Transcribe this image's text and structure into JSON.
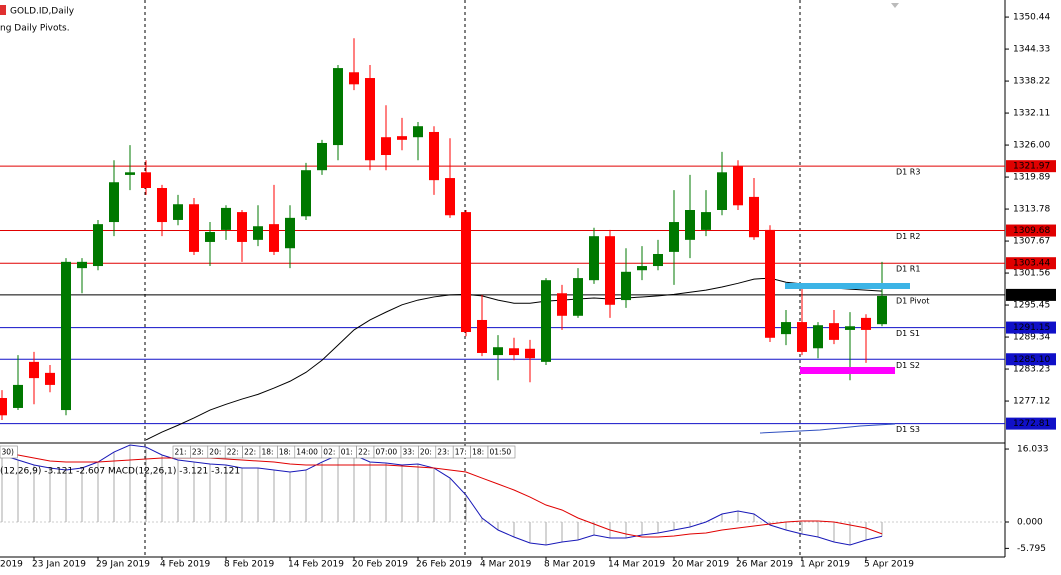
{
  "chart_data": {
    "type": "candlestick",
    "title": "GOLD.ID,Daily",
    "subtitle": "ng Daily Pivots.",
    "categories": [
      null,
      null,
      "23 Jan 2019",
      null,
      null,
      null,
      "29 Jan 2019",
      null,
      null,
      null,
      "4 Feb 2019",
      null,
      null,
      null,
      "8 Feb 2019",
      null,
      null,
      null,
      "14 Feb 2019",
      null,
      null,
      null,
      "20 Feb 2019",
      null,
      null,
      null,
      "26 Feb 2019",
      null,
      null,
      null,
      "4 Mar 2019",
      null,
      null,
      null,
      "8 Mar 2019",
      null,
      null,
      null,
      "14 Mar 2019",
      null,
      null,
      null,
      "20 Mar 2019",
      null,
      null,
      null,
      "26 Mar 2019",
      null,
      null,
      null,
      "1 Apr 2019",
      null,
      null,
      null,
      "5 Apr 2019",
      null
    ],
    "up_color": "#007800",
    "down_color": "#ff0000",
    "open": [
      1277.7,
      1275.8,
      1284.6,
      1282.5,
      1275.4,
      1302.5,
      1302.9,
      1311.3,
      1320.3,
      1320.8,
      1317.8,
      1311.7,
      1314.7,
      1307.5,
      1309.8,
      1313.2,
      1307.9,
      1310.9,
      1306.3,
      1312.4,
      1321.2,
      1326.0,
      1339.9,
      1338.8,
      1327.5,
      1327.7,
      1327.5,
      1328.5,
      1319.7,
      1313.2,
      1292.6,
      1285.9,
      1287.2,
      1287.1,
      1284.6,
      1297.7,
      1293.4,
      1300.2,
      1308.6,
      1296.4,
      1302.1,
      1302.9,
      1305.6,
      1307.9,
      1309.8,
      1313.6,
      1322.0,
      1316.1,
      1309.8,
      1289.9,
      1292.2,
      1287.2,
      1292.0,
      1290.7,
      1293.0,
      1291.8
    ],
    "high": [
      1279.2,
      1285.9,
      1286.5,
      1284.0,
      1304.4,
      1304.4,
      1311.7,
      1323.1,
      1326.0,
      1323.1,
      1318.4,
      1316.5,
      1315.9,
      1311.3,
      1314.5,
      1313.6,
      1314.5,
      1318.4,
      1314.5,
      1322.6,
      1327.0,
      1341.3,
      1346.4,
      1341.3,
      1333.6,
      1331.2,
      1330.4,
      1329.6,
      1327.3,
      1313.6,
      1297.4,
      1289.7,
      1289.2,
      1288.8,
      1300.6,
      1299.3,
      1302.5,
      1310.2,
      1309.8,
      1306.3,
      1306.7,
      1307.9,
      1317.4,
      1320.3,
      1317.4,
      1324.7,
      1323.1,
      1319.7,
      1310.7,
      1294.5,
      1299.3,
      1292.2,
      1294.5,
      1294.1,
      1293.7,
      1303.7
    ],
    "low": [
      1273.5,
      1275.4,
      1276.5,
      1278.8,
      1274.4,
      1297.7,
      1302.1,
      1308.6,
      1317.4,
      1316.5,
      1308.6,
      1310.7,
      1305.0,
      1302.9,
      1307.9,
      1303.7,
      1306.7,
      1305.0,
      1302.5,
      1311.7,
      1320.3,
      1323.1,
      1336.5,
      1321.2,
      1321.2,
      1325.0,
      1323.1,
      1316.5,
      1312.1,
      1289.5,
      1285.7,
      1281.1,
      1284.9,
      1280.7,
      1284.0,
      1290.7,
      1293.0,
      1299.5,
      1293.0,
      1294.9,
      1300.2,
      1302.1,
      1299.3,
      1304.4,
      1308.6,
      1312.6,
      1313.6,
      1307.9,
      1288.4,
      1287.8,
      1285.9,
      1285.3,
      1288.0,
      1281.1,
      1284.4,
      1291.4
    ],
    "close": [
      1274.4,
      1280.2,
      1281.5,
      1280.2,
      1303.7,
      1303.7,
      1310.9,
      1318.9,
      1320.8,
      1317.8,
      1311.3,
      1314.7,
      1305.6,
      1309.4,
      1314.0,
      1307.5,
      1310.5,
      1305.6,
      1312.1,
      1321.2,
      1326.4,
      1340.7,
      1337.6,
      1323.1,
      1324.1,
      1327.0,
      1329.6,
      1319.3,
      1312.6,
      1290.3,
      1286.3,
      1287.4,
      1285.9,
      1285.3,
      1300.2,
      1293.4,
      1300.6,
      1308.6,
      1295.5,
      1301.8,
      1302.9,
      1305.2,
      1311.3,
      1313.6,
      1313.2,
      1320.8,
      1314.5,
      1308.4,
      1289.2,
      1292.2,
      1286.5,
      1291.6,
      1288.8,
      1291.4,
      1290.7,
      1297.2
    ],
    "ma": {
      "color": "#000000",
      "values": [
        null,
        null,
        null,
        null,
        null,
        null,
        null,
        null,
        null,
        1269.7,
        1271.2,
        1272.5,
        1273.9,
        1275.4,
        1276.5,
        1277.5,
        1278.4,
        1279.6,
        1280.9,
        1282.6,
        1284.9,
        1287.8,
        1290.7,
        1292.6,
        1294.1,
        1295.5,
        1296.4,
        1297.0,
        1297.4,
        1297.5,
        1297.2,
        1296.4,
        1295.8,
        1295.8,
        1296.2,
        1296.4,
        1296.6,
        1296.8,
        1296.6,
        1296.8,
        1297.0,
        1297.2,
        1297.5,
        1297.9,
        1298.3,
        1298.9,
        1299.6,
        1300.4,
        1300.6,
        1299.8,
        1299.5,
        1299.1,
        1298.7,
        1298.5,
        1298.3,
        1298.1
      ]
    },
    "pivots": [
      {
        "label": "D1 R3",
        "value": 1321.97,
        "color": "#e00000"
      },
      {
        "label": "D1 R2",
        "value": 1309.68,
        "color": "#e00000"
      },
      {
        "label": "D1 R1",
        "value": 1303.44,
        "color": "#e00000"
      },
      {
        "label": "D1 Pivot",
        "value": 1297.39,
        "color": "#000000"
      },
      {
        "label": "D1 S1",
        "value": 1291.15,
        "color": "#1010c8"
      },
      {
        "label": "D1 S2",
        "value": 1285.1,
        "value_label": "1285.10",
        "color": "#1010c8"
      },
      {
        "label": "D1 S3",
        "value": 1272.81,
        "color": "#1010c8"
      }
    ],
    "ylim": [
      1269.3,
      1353.7
    ],
    "yticks": [
      1350.44,
      1344.33,
      1338.22,
      1332.11,
      {
        "value": 1326,
        "label": "1326.00"
      },
      1319.89,
      1313.78,
      1307.67,
      1301.56,
      1295.45,
      1289.34,
      1283.23,
      1277.12
    ],
    "time_labels": [
      "30)",
      "21:",
      "23:",
      "20:",
      "22:",
      "22:",
      "18:",
      "18:",
      "14:00",
      "02:",
      "01:",
      "22:",
      "07:00",
      "33:",
      "20:",
      "23:",
      "17:",
      "18:",
      "01:50"
    ],
    "macd": {
      "label": "(12,26,9) -3.121 -2.607 MACD(12,26,1) -3.121 -3.121",
      "histogram_color": "#a8a8a8",
      "series": [
        {
          "color": "#1818b8",
          "values": [
            14.72,
            13.62,
            12.52,
            11.86,
            11.42,
            11.86,
            13.18,
            15.37,
            16.91,
            16.47,
            14.72,
            13.62,
            13.18,
            12.74,
            12.52,
            11.86,
            11.86,
            11.42,
            10.98,
            11.42,
            13.18,
            14.72,
            14.72,
            13.18,
            12.96,
            12.52,
            12.74,
            11.86,
            9.66,
            5.93,
            0.88,
            -1.76,
            -3.29,
            -4.61,
            -5.05,
            -4.39,
            -3.95,
            -2.86,
            -3.51,
            -3.51,
            -2.86,
            -2.42,
            -1.76,
            -1.1,
            0,
            1.76,
            2.42,
            1.76,
            -0.66,
            -1.76,
            -2.64,
            -3.29,
            -4.39,
            -5.05,
            -3.95,
            -3.121
          ]
        },
        {
          "color": "#e00000",
          "values": [
            15.37,
            14.72,
            14.06,
            13.4,
            13.18,
            13.18,
            13.18,
            13.4,
            13.62,
            13.84,
            14.06,
            14.06,
            14.06,
            14.06,
            13.84,
            13.62,
            13.4,
            13.18,
            12.74,
            12.52,
            12.52,
            12.52,
            12.52,
            12.52,
            12.52,
            12.3,
            12.08,
            11.86,
            11.42,
            10.98,
            9.66,
            8.35,
            7.03,
            5.49,
            3.73,
            2.64,
            0.88,
            -0.44,
            -1.76,
            -2.64,
            -3.29,
            -3.29,
            -3.07,
            -2.64,
            -2.42,
            -1.76,
            -1.32,
            -0.88,
            -0.44,
            0,
            0.22,
            0.22,
            0,
            -0.66,
            -1.32,
            -2.607
          ]
        }
      ],
      "ylim": [
        -7.25,
        17.14
      ],
      "yticks": [
        16.033,
        {
          "value": 0,
          "label": "0.000"
        },
        -5.795
      ]
    }
  }
}
